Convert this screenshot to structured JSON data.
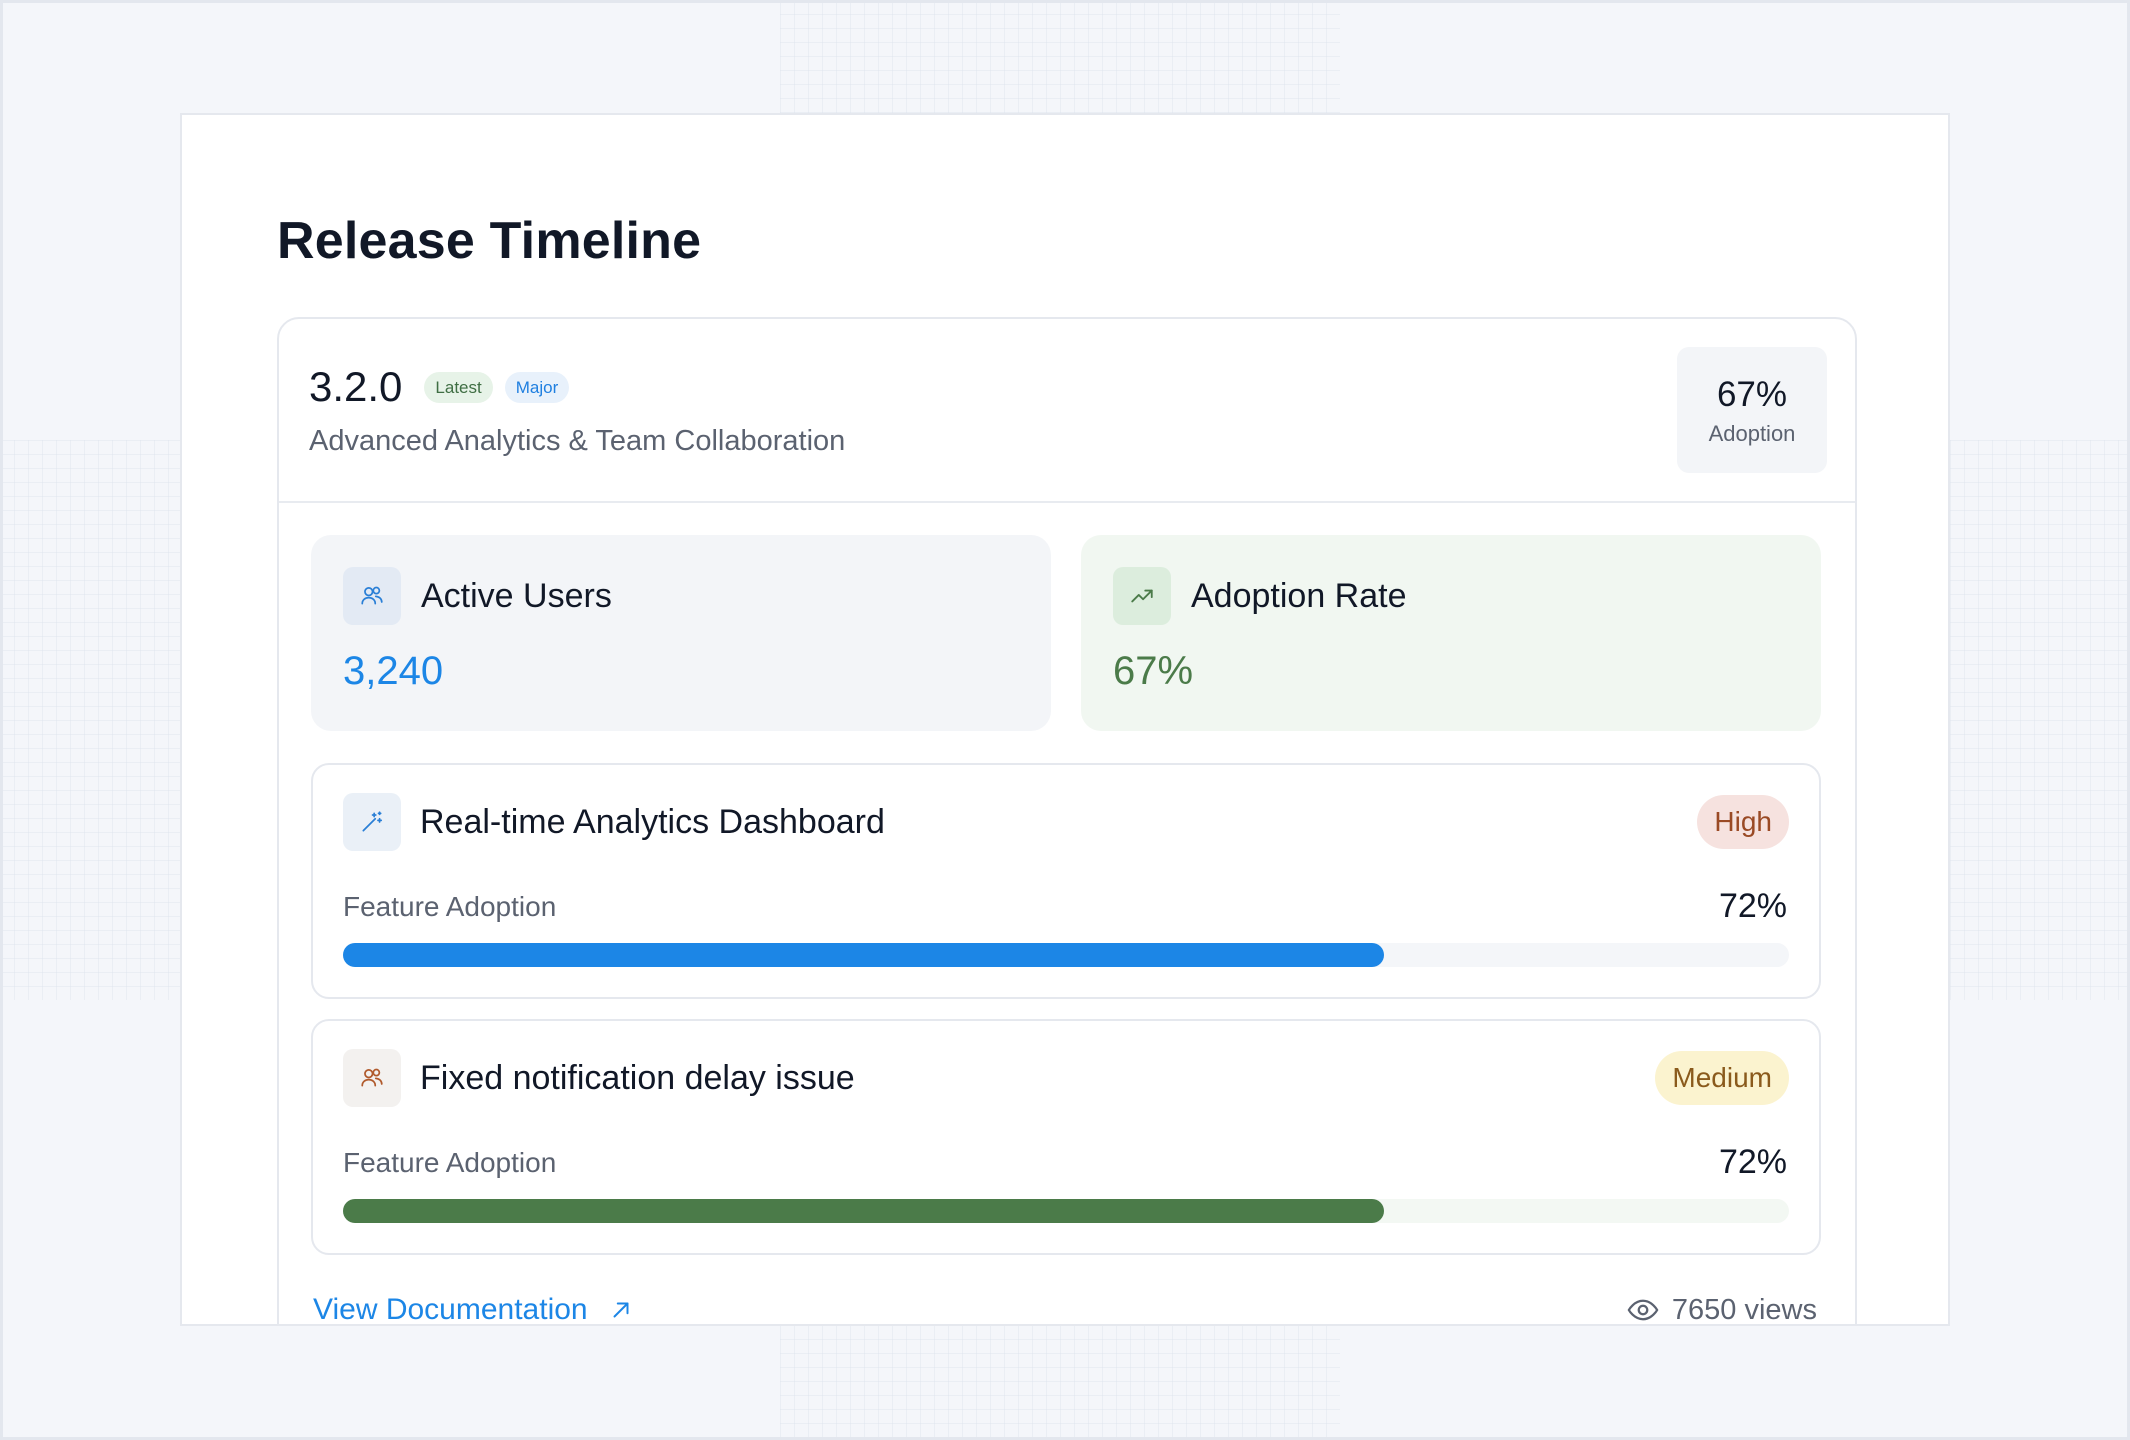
{
  "page": {
    "title": "Release Timeline"
  },
  "release": {
    "version": "3.2.0",
    "tags": [
      "Latest",
      "Major"
    ],
    "subtitle": "Advanced Analytics & Team Collaboration",
    "adoption_value": "67%",
    "adoption_label": "Adoption"
  },
  "stats": {
    "active_users": {
      "label": "Active Users",
      "value": "3,240",
      "icon": "users-icon"
    },
    "adoption_rate": {
      "label": "Adoption Rate",
      "value": "67%",
      "icon": "trending-up-icon"
    }
  },
  "features": [
    {
      "title": "Real-time Analytics Dashboard",
      "priority": "High",
      "adoption_label": "Feature Adoption",
      "adoption_value": "72%",
      "progress_percent": 72,
      "icon": "magic-wand-icon"
    },
    {
      "title": "Fixed notification delay issue",
      "priority": "Medium",
      "adoption_label": "Feature Adoption",
      "adoption_value": "72%",
      "progress_percent": 72,
      "icon": "users-icon"
    }
  ],
  "footer": {
    "link_label": "View Documentation",
    "views": "7650 views"
  },
  "colors": {
    "accent_blue": "#1c86e6",
    "accent_green": "#4b7b49",
    "high_badge_bg": "#f6e2df",
    "medium_badge_bg": "#fbf3cf"
  }
}
